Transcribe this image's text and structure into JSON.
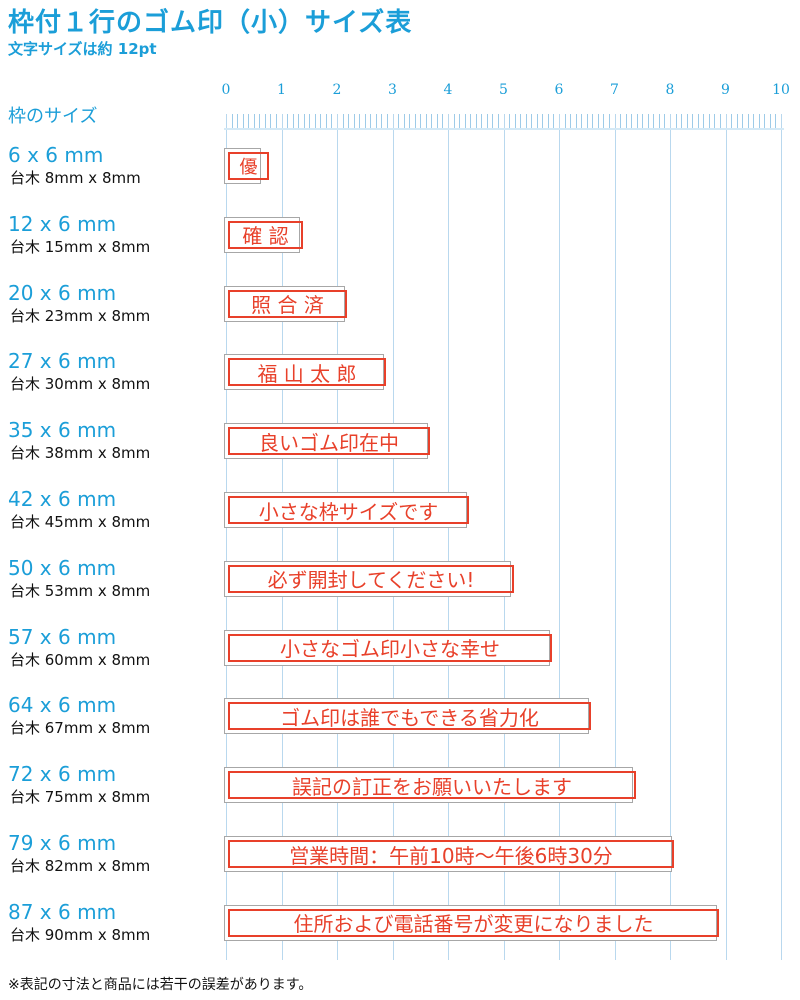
{
  "title": "枠付１行のゴム印（小）サイズ表",
  "subtitle": "文字サイズは約 12pt",
  "frame_header": "枠のサイズ",
  "ruler": {
    "labels": [
      "0",
      "1",
      "2",
      "3",
      "4",
      "5",
      "6",
      "7",
      "8",
      "9",
      "10"
    ],
    "unit_note": "cm"
  },
  "rows": [
    {
      "size": "6 x 6 mm",
      "daiki": "台木 8mm x 8mm",
      "text": "優",
      "frame_mm": 6,
      "block_mm": 8
    },
    {
      "size": "12 x 6 mm",
      "daiki": "台木 15mm x 8mm",
      "text": "確 認",
      "frame_mm": 12,
      "block_mm": 15
    },
    {
      "size": "20 x 6 mm",
      "daiki": "台木 23mm x 8mm",
      "text": "照 合 済",
      "frame_mm": 20,
      "block_mm": 23
    },
    {
      "size": "27 x 6 mm",
      "daiki": "台木 30mm x 8mm",
      "text": "福 山 太 郎",
      "frame_mm": 27,
      "block_mm": 30
    },
    {
      "size": "35 x 6 mm",
      "daiki": "台木 38mm x 8mm",
      "text": "良いゴム印在中",
      "frame_mm": 35,
      "block_mm": 38
    },
    {
      "size": "42 x 6 mm",
      "daiki": "台木 45mm x 8mm",
      "text": "小さな枠サイズです",
      "frame_mm": 42,
      "block_mm": 45
    },
    {
      "size": "50 x 6 mm",
      "daiki": "台木 53mm x 8mm",
      "text": "必ず開封してください!",
      "frame_mm": 50,
      "block_mm": 53
    },
    {
      "size": "57 x 6 mm",
      "daiki": "台木 60mm x 8mm",
      "text": "小さなゴム印小さな幸せ",
      "frame_mm": 57,
      "block_mm": 60
    },
    {
      "size": "64 x 6 mm",
      "daiki": "台木 67mm x 8mm",
      "text": "ゴム印は誰でもできる省力化",
      "frame_mm": 64,
      "block_mm": 67
    },
    {
      "size": "72 x 6 mm",
      "daiki": "台木 75mm x 8mm",
      "text": "誤記の訂正をお願いいたします",
      "frame_mm": 72,
      "block_mm": 75
    },
    {
      "size": "79 x 6 mm",
      "daiki": "台木 82mm x 8mm",
      "text": "営業時間：午前10時～午後6時30分",
      "frame_mm": 79,
      "block_mm": 82
    },
    {
      "size": "87 x 6 mm",
      "daiki": "台木 90mm x 8mm",
      "text": "住所および電話番号が変更になりました",
      "frame_mm": 87,
      "block_mm": 90
    }
  ],
  "note": "※表記の寸法と商品には若干の誤差があります。",
  "colors": {
    "accent": "#1b9ed8",
    "stamp": "#e8402a",
    "grid": "#b9d8ee"
  }
}
